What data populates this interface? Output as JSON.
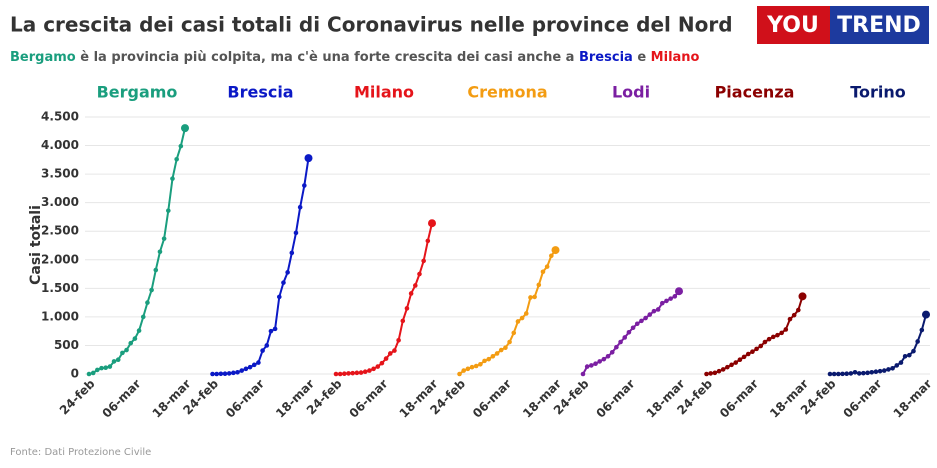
{
  "chart_data": {
    "type": "line",
    "title": "La crescita dei casi totali di Coronavirus nelle province del Nord",
    "subtitle": [
      "Bergamo",
      " è la provincia più colpita, ma c'è una forte crescita dei casi anche a ",
      "Brescia",
      " e ",
      "Milano"
    ],
    "logo": [
      "YOU",
      "TREND"
    ],
    "y_label": "Casi totali",
    "source": "Fonte: Dati Protezione Civile",
    "categories": [
      "24-feb",
      null,
      null,
      null,
      null,
      null,
      null,
      null,
      null,
      null,
      null,
      "06-mar",
      null,
      null,
      null,
      null,
      null,
      null,
      null,
      null,
      null,
      null,
      null,
      "18-mar"
    ],
    "ylim": [
      0,
      4500
    ],
    "yticks": [
      0,
      {
        "value": 500,
        "label": "500"
      },
      {
        "value": 1000,
        "label": "1.000"
      },
      {
        "value": 1500,
        "label": "1.500"
      },
      {
        "value": 2000,
        "label": "2.000"
      },
      {
        "value": 2500,
        "label": "2.500"
      },
      {
        "value": 3000,
        "label": "3.000"
      },
      {
        "value": 3500,
        "label": "3.500"
      },
      {
        "value": 4000,
        "label": "4.000"
      },
      {
        "value": 4500,
        "label": "4.500"
      }
    ],
    "grid": true,
    "series": [
      {
        "name": "Bergamo",
        "color": "#1a9e7e",
        "values": [
          0,
          18,
          72,
          103,
          110,
          130,
          220,
          250,
          370,
          420,
          540,
          620,
          760,
          1000,
          1250,
          1470,
          1820,
          2140,
          2370,
          2860,
          3420,
          3760,
          3990,
          4305
        ]
      },
      {
        "name": "Brescia",
        "color": "#0b19c6",
        "values": [
          0,
          0,
          4,
          5,
          10,
          20,
          30,
          60,
          90,
          120,
          160,
          200,
          410,
          500,
          750,
          790,
          1350,
          1600,
          1780,
          2120,
          2470,
          2920,
          3300,
          3780
        ]
      },
      {
        "name": "Milano",
        "color": "#e5141a",
        "values": [
          0,
          0,
          5,
          10,
          15,
          20,
          25,
          40,
          60,
          90,
          130,
          190,
          270,
          360,
          410,
          590,
          930,
          1150,
          1410,
          1550,
          1750,
          1980,
          2330,
          2640
        ]
      },
      {
        "name": "Cremona",
        "color": "#f39c12",
        "values": [
          0,
          60,
          90,
          120,
          140,
          170,
          230,
          260,
          310,
          360,
          420,
          460,
          560,
          720,
          920,
          980,
          1060,
          1340,
          1350,
          1560,
          1790,
          1880,
          2070,
          2170
        ]
      },
      {
        "name": "Lodi",
        "color": "#7b1fa2",
        "values": [
          0,
          130,
          150,
          180,
          220,
          260,
          310,
          380,
          470,
          560,
          640,
          730,
          810,
          880,
          930,
          980,
          1040,
          1100,
          1130,
          1240,
          1280,
          1320,
          1360,
          1450
        ]
      },
      {
        "name": "Piacenza",
        "color": "#8b0000",
        "values": [
          0,
          10,
          20,
          50,
          80,
          120,
          160,
          200,
          250,
          300,
          350,
          390,
          440,
          490,
          560,
          610,
          650,
          680,
          720,
          780,
          960,
          1030,
          1120,
          1360
        ]
      },
      {
        "name": "Torino",
        "color": "#0a1a6e",
        "values": [
          0,
          0,
          0,
          2,
          5,
          10,
          30,
          10,
          15,
          20,
          30,
          40,
          50,
          60,
          80,
          100,
          150,
          200,
          310,
          330,
          400,
          570,
          770,
          1040
        ]
      }
    ]
  }
}
